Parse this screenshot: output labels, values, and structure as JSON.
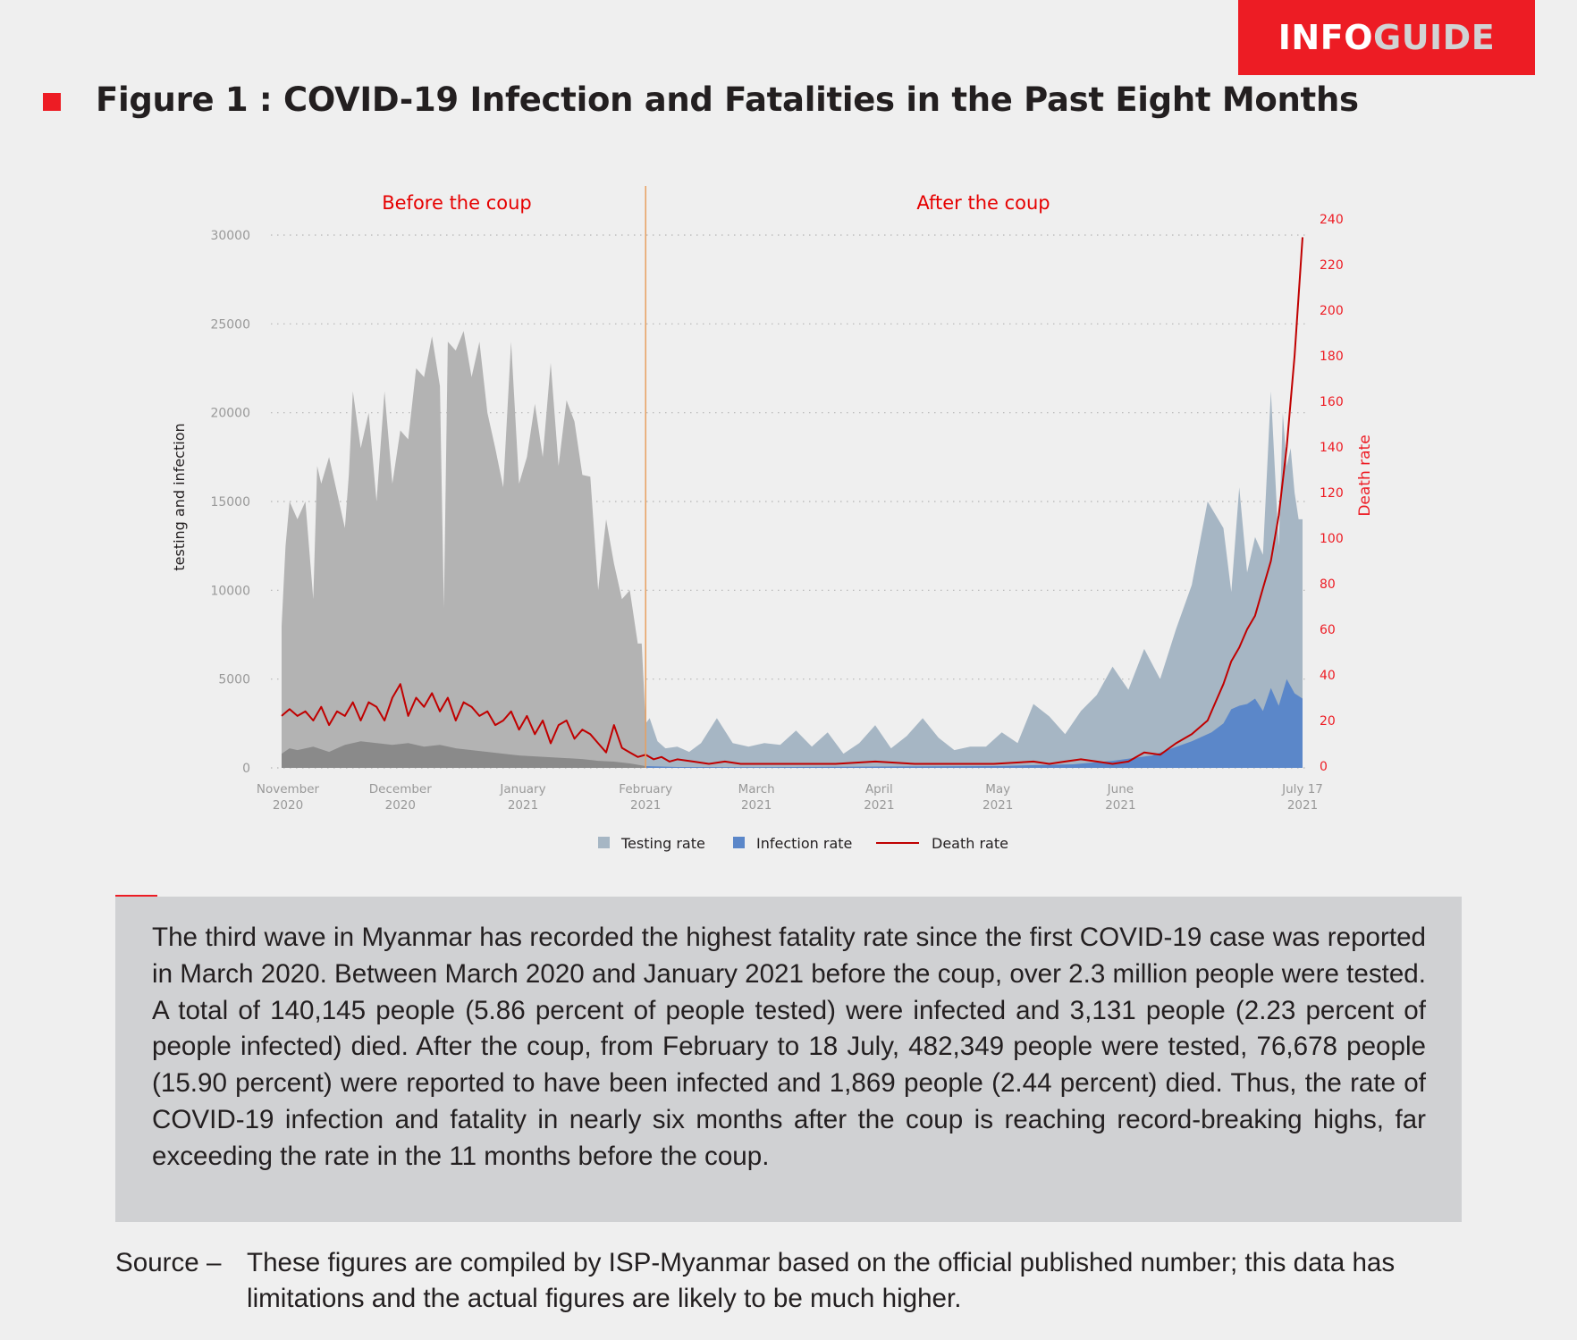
{
  "brand": {
    "part1": "INFO",
    "part2": "GUIDE"
  },
  "figure": {
    "title": "Figure 1 : COVID-19 Infection and Fatalities in the Past Eight Months"
  },
  "colors": {
    "accent": "#ed1c24",
    "testing_before": "#b3b3b3",
    "infection_before": "#8a8a8a",
    "testing_after": "#a6b6c4",
    "infection_after": "#5b87c9",
    "death": "#c00000",
    "divider": "#e8a060",
    "axis_text": "#999999",
    "right_axis_text": "#ed1c24"
  },
  "chart_data": {
    "type": "area",
    "periods": {
      "before": "Before the coup",
      "after": "After the coup"
    },
    "ylabel_left": "testing and infection",
    "ylabel_right": "Death rate",
    "ylim_left": [
      0,
      30000
    ],
    "ylim_right": [
      0,
      240
    ],
    "yticks_left": [
      "0",
      "5000",
      "10000",
      "15000",
      "20000",
      "25000",
      "30000"
    ],
    "yticks_right": [
      "0",
      "20",
      "40",
      "60",
      "80",
      "100",
      "120",
      "140",
      "160",
      "180",
      "200",
      "220",
      "240"
    ],
    "xticks": [
      {
        "month": "November",
        "year": "2020"
      },
      {
        "month": "December",
        "year": "2020"
      },
      {
        "month": "January",
        "year": "2021"
      },
      {
        "month": "February",
        "year": "2021"
      },
      {
        "month": "March",
        "year": "2021"
      },
      {
        "month": "April",
        "year": "2021"
      },
      {
        "month": "May",
        "year": "2021"
      },
      {
        "month": "June",
        "year": "2021"
      },
      {
        "month": "July 17",
        "year": "2021"
      }
    ],
    "x_days_range": [
      0,
      258
    ],
    "coup_day": 92,
    "grid": true,
    "legend": {
      "position": "bottom",
      "items": [
        "Testing rate",
        "Infection rate",
        "Death rate"
      ]
    },
    "series": [
      {
        "name": "Testing rate",
        "days": [
          0,
          1,
          2,
          4,
          6,
          8,
          9,
          10,
          12,
          14,
          16,
          17,
          18,
          20,
          22,
          24,
          26,
          28,
          30,
          32,
          34,
          36,
          38,
          40,
          41,
          42,
          44,
          46,
          48,
          50,
          52,
          54,
          56,
          58,
          60,
          62,
          64,
          66,
          68,
          70,
          72,
          74,
          76,
          78,
          80,
          82,
          84,
          86,
          88,
          90,
          91,
          92,
          93,
          95,
          97,
          100,
          103,
          106,
          110,
          114,
          118,
          122,
          126,
          130,
          134,
          138,
          142,
          146,
          150,
          154,
          158,
          162,
          166,
          170,
          174,
          178,
          182,
          186,
          190,
          194,
          198,
          202,
          206,
          210,
          214,
          218,
          222,
          226,
          230,
          234,
          238,
          240,
          242,
          244,
          246,
          248,
          250,
          252,
          253,
          254,
          255,
          256,
          257,
          258
        ],
        "values": [
          8000,
          12500,
          15000,
          14000,
          15000,
          9500,
          17000,
          16000,
          17500,
          15500,
          13500,
          16500,
          21200,
          18000,
          20000,
          15000,
          21200,
          16000,
          19000,
          18500,
          22500,
          22000,
          24300,
          21500,
          9000,
          24000,
          23500,
          24600,
          22000,
          24000,
          20000,
          18000,
          15800,
          24000,
          16000,
          17500,
          20500,
          17500,
          22800,
          17000,
          20700,
          19500,
          16500,
          16400,
          10000,
          14000,
          11500,
          9500,
          10000,
          7000,
          7000,
          2500,
          2800,
          1500,
          1100,
          1200,
          900,
          1400,
          2800,
          1400,
          1200,
          1400,
          1300,
          2100,
          1200,
          2000,
          800,
          1400,
          2400,
          1100,
          1800,
          2800,
          1700,
          1000,
          1200,
          1200,
          2000,
          1400,
          3600,
          2900,
          1900,
          3200,
          4100,
          5700,
          4400,
          6700,
          5000,
          7800,
          10300,
          15000,
          13500,
          9900,
          15800,
          11000,
          13000,
          12000,
          21200,
          12500,
          20000,
          17000,
          18000,
          15500,
          14000,
          14000
        ]
      },
      {
        "name": "Infection rate",
        "days": [
          0,
          2,
          4,
          8,
          12,
          16,
          20,
          24,
          28,
          32,
          36,
          40,
          44,
          48,
          52,
          56,
          60,
          64,
          68,
          72,
          76,
          80,
          84,
          88,
          92,
          100,
          120,
          140,
          160,
          180,
          200,
          210,
          220,
          225,
          230,
          235,
          238,
          240,
          242,
          244,
          246,
          248,
          250,
          252,
          254,
          256,
          258
        ],
        "values": [
          800,
          1100,
          1000,
          1200,
          900,
          1300,
          1500,
          1400,
          1300,
          1400,
          1200,
          1300,
          1100,
          1000,
          900,
          800,
          700,
          650,
          600,
          550,
          500,
          400,
          350,
          250,
          100,
          50,
          40,
          60,
          80,
          100,
          200,
          400,
          700,
          1100,
          1500,
          2000,
          2500,
          3300,
          3500,
          3600,
          3900,
          3200,
          4500,
          3500,
          5000,
          4200,
          3900
        ]
      },
      {
        "name": "Death rate",
        "days": [
          0,
          2,
          4,
          6,
          8,
          10,
          12,
          14,
          16,
          18,
          20,
          22,
          24,
          26,
          28,
          30,
          32,
          34,
          36,
          38,
          40,
          42,
          44,
          46,
          48,
          50,
          52,
          54,
          56,
          58,
          60,
          62,
          64,
          66,
          68,
          70,
          72,
          74,
          76,
          78,
          80,
          82,
          84,
          86,
          88,
          90,
          92,
          94,
          96,
          98,
          100,
          104,
          108,
          112,
          116,
          120,
          130,
          140,
          150,
          160,
          170,
          180,
          190,
          194,
          198,
          202,
          206,
          210,
          214,
          218,
          222,
          226,
          230,
          234,
          236,
          238,
          240,
          242,
          244,
          246,
          248,
          250,
          252,
          254,
          256,
          258
        ],
        "values": [
          22,
          25,
          22,
          24,
          20,
          26,
          18,
          24,
          22,
          28,
          20,
          28,
          26,
          20,
          30,
          36,
          22,
          30,
          26,
          32,
          24,
          30,
          20,
          28,
          26,
          22,
          24,
          18,
          20,
          24,
          16,
          22,
          14,
          20,
          10,
          18,
          20,
          12,
          16,
          14,
          10,
          6,
          18,
          8,
          6,
          4,
          5,
          3,
          4,
          2,
          3,
          2,
          1,
          2,
          1,
          1,
          1,
          1,
          2,
          1,
          1,
          1,
          2,
          1,
          2,
          3,
          2,
          1,
          2,
          6,
          5,
          10,
          14,
          20,
          28,
          36,
          46,
          52,
          60,
          66,
          78,
          90,
          110,
          140,
          180,
          232
        ]
      }
    ]
  },
  "summary": {
    "text": "The third wave in Myanmar has recorded the highest fatality rate since the first COVID-19 case was reported in March 2020. Between March 2020 and January 2021 before the coup, over 2.3 million people were tested.  A total of 140,145 people (5.86 percent of people tested) were infected and 3,131 people (2.23 percent of people infected) died. After the coup, from February to 18 July, 482,349 people were tested, 76,678 people (15.90 percent) were reported to have been infected and 1,869 people (2.44 percent) died. Thus, the rate of COVID-19 infection and fatality in nearly six months after the coup is reaching record-breaking highs, far exceeding the rate in the 11 months before the coup."
  },
  "source": {
    "label": "Source –",
    "text": "These figures are compiled by ISP-Myanmar based on the official published number; this data has limitations and the actual figures are likely to be much higher."
  }
}
